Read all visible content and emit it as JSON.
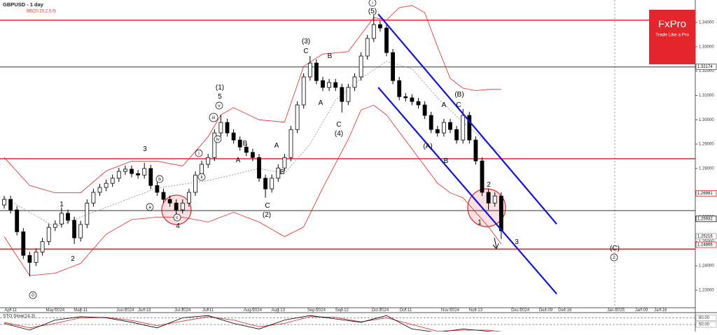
{
  "chart_data": {
    "type": "candlestick",
    "title": "GBPUSD - 1 day",
    "indicator_label": "BB(20,20,2,0,0)",
    "logo": {
      "name": "FxPro",
      "tagline": "Trade Like a Pro",
      "color": "#e4252b"
    },
    "up_color": "#ffffff",
    "down_color": "#000000",
    "open": [
      1.265,
      1.2673,
      1.263,
      1.254,
      1.2443,
      1.2414,
      1.2457,
      1.25,
      1.2558,
      1.2572,
      1.2616,
      1.2587,
      1.2515,
      1.257,
      1.2658,
      1.2702,
      1.2722,
      1.2739,
      1.276,
      1.2788,
      1.2797,
      1.2779,
      1.2773,
      1.28,
      1.273,
      1.2702,
      1.2673,
      1.2658,
      1.263,
      1.2658,
      1.2702,
      1.2773,
      1.2817,
      1.2845,
      1.2946,
      1.2989,
      1.2946,
      1.2917,
      1.2888,
      1.2866,
      1.2845,
      1.276,
      1.2716,
      1.276,
      1.2802,
      1.2845,
      1.296,
      1.3061,
      1.3176,
      1.3233,
      1.3161,
      1.3133,
      1.3153,
      1.3133,
      1.3075,
      1.3133,
      1.3176,
      1.3262,
      1.3334,
      1.3391,
      1.3377,
      1.3276,
      1.3161,
      1.3095,
      1.309,
      1.3075,
      1.3061,
      1.3018,
      1.296,
      1.2946,
      1.2989,
      1.296,
      1.2917,
      1.3018,
      1.2917,
      1.2831,
      1.2702,
      1.2658,
      1.2687
    ],
    "high": [
      1.2688,
      1.2688,
      1.2645,
      1.2555,
      1.2458,
      1.2472,
      1.2515,
      1.2573,
      1.2587,
      1.264,
      1.2631,
      1.2602,
      1.2585,
      1.2673,
      1.2717,
      1.2737,
      1.2754,
      1.2775,
      1.2803,
      1.2812,
      1.2812,
      1.2794,
      1.2823,
      1.2815,
      1.2745,
      1.2717,
      1.2688,
      1.2673,
      1.2673,
      1.2717,
      1.2788,
      1.2832,
      1.286,
      1.2961,
      1.302,
      1.3004,
      1.2961,
      1.2932,
      1.2903,
      1.2881,
      1.286,
      1.2775,
      1.2775,
      1.2817,
      1.286,
      1.2975,
      1.3076,
      1.3191,
      1.3262,
      1.3248,
      1.3176,
      1.3168,
      1.3168,
      1.3148,
      1.3148,
      1.3191,
      1.3277,
      1.3349,
      1.3434,
      1.3406,
      1.3392,
      1.3291,
      1.3176,
      1.311,
      1.3105,
      1.309,
      1.3076,
      1.3033,
      1.2975,
      1.3004,
      1.3004,
      1.2975,
      1.3045,
      1.3033,
      1.2932,
      1.2846,
      1.2717,
      1.2702,
      1.2702
    ],
    "low": [
      1.2635,
      1.2615,
      1.2525,
      1.2428,
      1.2357,
      1.2399,
      1.2442,
      1.2485,
      1.2543,
      1.2557,
      1.2572,
      1.249,
      1.25,
      1.2555,
      1.2643,
      1.2687,
      1.2707,
      1.2724,
      1.2745,
      1.2773,
      1.2764,
      1.2758,
      1.2758,
      1.2715,
      1.2687,
      1.2658,
      1.2643,
      1.26,
      1.2615,
      1.2643,
      1.2687,
      1.2758,
      1.2802,
      1.283,
      1.2931,
      1.2931,
      1.2902,
      1.2873,
      1.2851,
      1.283,
      1.2745,
      1.268,
      1.2701,
      1.2745,
      1.2787,
      1.283,
      1.2945,
      1.3046,
      1.3161,
      1.3146,
      1.3118,
      1.3118,
      1.3118,
      1.303,
      1.306,
      1.3118,
      1.3161,
      1.3247,
      1.3319,
      1.3362,
      1.3261,
      1.3146,
      1.308,
      1.3075,
      1.306,
      1.3046,
      1.3003,
      1.2945,
      1.2931,
      1.2931,
      1.2945,
      1.2902,
      1.2902,
      1.2902,
      1.2816,
      1.2687,
      1.263,
      1.2643,
      1.251
    ],
    "close": [
      1.2673,
      1.263,
      1.254,
      1.2443,
      1.2414,
      1.2457,
      1.25,
      1.2558,
      1.2572,
      1.2616,
      1.2587,
      1.2515,
      1.257,
      1.2658,
      1.2702,
      1.2722,
      1.2739,
      1.276,
      1.2788,
      1.2797,
      1.2779,
      1.2773,
      1.28,
      1.273,
      1.2702,
      1.2673,
      1.2658,
      1.263,
      1.2658,
      1.2702,
      1.2773,
      1.2817,
      1.2845,
      1.2946,
      1.2989,
      1.2946,
      1.2917,
      1.2888,
      1.2866,
      1.2845,
      1.276,
      1.2716,
      1.276,
      1.2802,
      1.2845,
      1.296,
      1.3061,
      1.3176,
      1.3233,
      1.3161,
      1.3133,
      1.3153,
      1.3133,
      1.3075,
      1.3133,
      1.3176,
      1.3262,
      1.3334,
      1.3391,
      1.3377,
      1.3276,
      1.3161,
      1.3095,
      1.309,
      1.3075,
      1.3061,
      1.3018,
      1.296,
      1.2946,
      1.2989,
      1.296,
      1.2917,
      1.3018,
      1.2917,
      1.2831,
      1.2702,
      1.2658,
      1.2687,
      1.2544
    ],
    "bands": [
      {
        "color": "#e4252b",
        "dashed": false,
        "x": [
          0,
          4,
          8,
          12,
          16,
          20,
          24,
          28,
          32,
          34,
          36,
          40,
          44,
          47,
          50,
          54,
          58,
          60,
          62,
          64,
          66,
          68,
          70,
          72,
          74,
          76,
          78
        ],
        "values": [
          1.2845,
          1.273,
          1.27,
          1.27,
          1.279,
          1.283,
          1.283,
          1.281,
          1.293,
          1.302,
          1.305,
          1.3,
          1.299,
          1.322,
          1.327,
          1.328,
          1.342,
          1.341,
          1.346,
          1.347,
          1.344,
          1.33,
          1.317,
          1.313,
          1.312,
          1.3125,
          1.3125
        ]
      },
      {
        "color": "#e4252b",
        "dashed": false,
        "x": [
          0,
          4,
          8,
          12,
          16,
          20,
          24,
          28,
          32,
          36,
          40,
          44,
          47,
          50,
          54,
          56,
          58,
          60,
          62,
          64,
          66,
          68,
          70,
          72,
          74,
          76,
          78
        ],
        "values": [
          1.252,
          1.236,
          1.237,
          1.241,
          1.253,
          1.259,
          1.26,
          1.26,
          1.258,
          1.262,
          1.258,
          1.252,
          1.256,
          1.272,
          1.292,
          1.304,
          1.306,
          1.302,
          1.295,
          1.288,
          1.281,
          1.274,
          1.27,
          1.268,
          1.262,
          1.256,
          1.249
        ]
      },
      {
        "color": "#888888",
        "dashed": true,
        "x": [
          0,
          8,
          16,
          24,
          32,
          40,
          44,
          48,
          52,
          56,
          60,
          64,
          68,
          72,
          76,
          78
        ],
        "values": [
          1.268,
          1.256,
          1.264,
          1.272,
          1.275,
          1.28,
          1.278,
          1.29,
          1.308,
          1.317,
          1.324,
          1.321,
          1.309,
          1.299,
          1.29,
          1.286
        ]
      }
    ],
    "trendlines": [
      {
        "color": "#1010e0",
        "x": [
          58.7,
          86.7
        ],
        "values": [
          1.3434,
          1.2572
        ]
      },
      {
        "color": "#1010e0",
        "x": [
          58.7,
          86.7
        ],
        "values": [
          1.3133,
          1.2285
        ]
      }
    ],
    "levels": [
      {
        "value": 1.3409,
        "color": "#e4252b"
      },
      {
        "value": 1.284,
        "color": "#e4252b"
      },
      {
        "value": 1.2469,
        "color": "#e4252b"
      },
      {
        "value": 1.3217,
        "color": "#333333"
      },
      {
        "value": 1.2627,
        "color": "#333333"
      }
    ],
    "price_tags": [
      {
        "value": 1.32174,
        "label": "1.32174",
        "color": "#555555"
      },
      {
        "value": 1.26981,
        "label": "1.26981",
        "color": "#e4252b"
      },
      {
        "value": 1.25932,
        "label": "1.25932",
        "color": "#000000"
      },
      {
        "value": 1.25216,
        "label": "1.25216",
        "color": "#999999"
      },
      {
        "value": 1.24866,
        "label": "1.24866",
        "color": "#e4252b"
      }
    ],
    "wave_labels": [
      "0",
      "1",
      "2",
      "3",
      "a",
      "b",
      "c",
      "4",
      "i",
      "ii",
      "iii",
      "iv",
      "v",
      "5",
      "(1)",
      "A",
      "B",
      "C",
      "(2)",
      "A",
      "B",
      "C",
      "(3)",
      "B",
      "A",
      "C",
      "(4)",
      "(5)",
      "i",
      "(A)",
      "A",
      "B",
      "(B)",
      "C",
      "2",
      "1",
      "3",
      "(C)",
      "2"
    ],
    "xlim": [
      -0.66,
      108.46
    ],
    "xticks": [
      {
        "value": 1,
        "label": "Apr-11"
      },
      {
        "value": 8,
        "label": "May-2024"
      },
      {
        "value": 12,
        "label": "May-11"
      },
      {
        "value": 19,
        "label": "Jun-2024"
      },
      {
        "value": 22,
        "label": "Jun-13"
      },
      {
        "value": 28,
        "label": "Jul-2024"
      },
      {
        "value": 32,
        "label": "Jul-11"
      },
      {
        "value": 39,
        "label": "Aug-2024"
      },
      {
        "value": 43,
        "label": "Aug-13"
      },
      {
        "value": 49,
        "label": "Sep-2024"
      },
      {
        "value": 53,
        "label": "Sep-12"
      },
      {
        "value": 59,
        "label": "Oct-2024"
      },
      {
        "value": 63,
        "label": "Oct-11"
      },
      {
        "value": 70,
        "label": "Nov-2024"
      },
      {
        "value": 74,
        "label": "Nov-13"
      },
      {
        "value": 81,
        "label": "Dec-2024"
      },
      {
        "value": 85,
        "label": "Dec-09"
      },
      {
        "value": 88,
        "label": "Dec-16"
      },
      {
        "value": 96,
        "label": "Jan-2025"
      },
      {
        "value": 100,
        "label": "Jan-09"
      },
      {
        "value": 103,
        "label": "Jan-16"
      }
    ],
    "ylim": [
      1.2228,
      1.3492
    ],
    "yticks": [
      {
        "value": 1.23,
        "label": "1.23000"
      },
      {
        "value": 1.24,
        "label": "1.24000"
      },
      {
        "value": 1.25,
        "label": "1.25000"
      },
      {
        "value": 1.26,
        "label": "1.26000"
      },
      {
        "value": 1.27,
        "label": "1.27000"
      },
      {
        "value": 1.28,
        "label": "1.28000"
      },
      {
        "value": 1.29,
        "label": "1.29000"
      },
      {
        "value": 1.3,
        "label": "1.30000"
      },
      {
        "value": 1.31,
        "label": "1.31000"
      },
      {
        "value": 1.32,
        "label": "1.32000"
      },
      {
        "value": 1.33,
        "label": "1.33000"
      },
      {
        "value": 1.34,
        "label": "1.34000"
      }
    ],
    "stoch": {
      "title": "STO Slow(14,3)",
      "ylim": [
        0,
        100
      ],
      "yticks": [
        {
          "value": 80,
          "label": "80.00"
        },
        {
          "value": 50,
          "label": "50.00"
        }
      ],
      "x": [
        0,
        4,
        8,
        12,
        16,
        20,
        24,
        28,
        32,
        36,
        40,
        44,
        48,
        52,
        56,
        60,
        64,
        68,
        72,
        76,
        78
      ],
      "k": [
        55,
        25,
        70,
        85,
        80,
        60,
        35,
        80,
        90,
        55,
        30,
        70,
        90,
        75,
        60,
        90,
        30,
        15,
        30,
        20,
        15
      ],
      "d": [
        60,
        35,
        55,
        80,
        82,
        68,
        45,
        65,
        85,
        70,
        40,
        55,
        85,
        82,
        62,
        80,
        50,
        20,
        25,
        25,
        18
      ],
      "k_color": "#000000",
      "d_color": "#e4252b"
    }
  }
}
